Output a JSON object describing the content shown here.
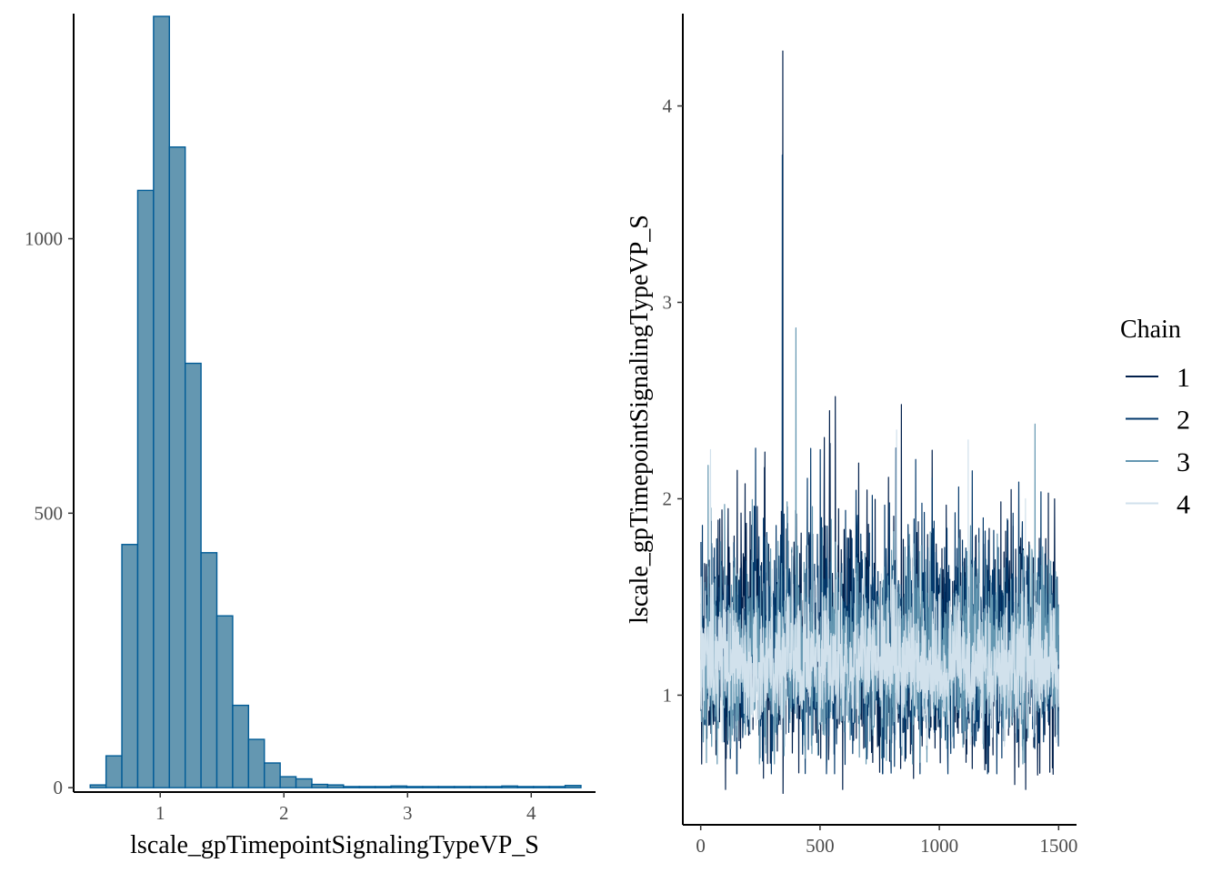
{
  "chart_data": [
    {
      "type": "histogram",
      "xlabel": "lscale_gpTimepointSignalingTypeVP_S",
      "ylabel": "",
      "xlim": [
        0.3,
        4.52
      ],
      "ylim": [
        -8,
        1410
      ],
      "x_ticks": [
        1,
        2,
        3,
        4
      ],
      "x_tick_labels": [
        "1",
        "2",
        "3",
        "4"
      ],
      "y_ticks": [
        0,
        500,
        1000
      ],
      "y_tick_labels": [
        "0",
        "500",
        "1000"
      ],
      "grid": false,
      "fill_color": "#6497b1",
      "edge_color": "#005b96",
      "bin_width": 0.128,
      "bin_left_edges": [
        0.434,
        0.562,
        0.69,
        0.818,
        0.946,
        1.074,
        1.202,
        1.33,
        1.458,
        1.586,
        1.714,
        1.842,
        1.97,
        2.098,
        2.226,
        2.354,
        2.482,
        2.61,
        2.738,
        2.866,
        2.994,
        3.122,
        3.25,
        3.378,
        3.506,
        3.634,
        3.762,
        3.89,
        4.018,
        4.146,
        4.274
      ],
      "counts": [
        5,
        58,
        443,
        1088,
        1405,
        1167,
        773,
        428,
        313,
        150,
        88,
        45,
        20,
        16,
        6,
        5,
        2,
        2,
        2,
        3,
        2,
        2,
        2,
        2,
        2,
        2,
        3,
        2,
        2,
        2,
        4
      ]
    },
    {
      "type": "line",
      "title": "",
      "xlabel": "",
      "ylabel": "lscale_gpTimepointSignalingTypeVP_S",
      "xlim": [
        -75,
        1575
      ],
      "ylim": [
        0.34,
        4.47
      ],
      "x_ticks": [
        0,
        500,
        1000,
        1500
      ],
      "x_tick_labels": [
        "0",
        "500",
        "1000",
        "1500"
      ],
      "y_ticks": [
        1,
        2,
        3,
        4
      ],
      "y_tick_labels": [
        "1",
        "2",
        "3",
        "4"
      ],
      "grid": false,
      "n_iterations": 1500,
      "legend": {
        "title": "Chain",
        "position": "right",
        "entries": [
          "1",
          "2",
          "3",
          "4"
        ]
      },
      "series": [
        {
          "name": "1",
          "color": "#011f4b",
          "width": 1.2,
          "seed": 11,
          "center": 1.18,
          "spread": 0.27,
          "lo": 0.52,
          "hi": 2.5,
          "spikes": [
            [
              343,
              4.28
            ],
            [
              344,
              0.5
            ],
            [
              840,
              2.48
            ],
            [
              563,
              2.52
            ],
            [
              1190,
              0.62
            ]
          ]
        },
        {
          "name": "2",
          "color": "#03396c",
          "width": 1.2,
          "seed": 23,
          "center": 1.16,
          "spread": 0.25,
          "lo": 0.6,
          "hi": 2.4,
          "spikes": [
            [
              341,
              3.75
            ],
            [
              500,
              2.25
            ],
            [
              900,
              2.2
            ]
          ]
        },
        {
          "name": "3",
          "color": "#6497b1",
          "width": 1.2,
          "seed": 37,
          "center": 1.15,
          "spread": 0.22,
          "lo": 0.65,
          "hi": 2.4,
          "spikes": [
            [
              398,
              2.87
            ],
            [
              1400,
              2.38
            ],
            [
              30,
              2.17
            ]
          ]
        },
        {
          "name": "4",
          "color": "#d1e1ec",
          "width": 1.2,
          "seed": 53,
          "center": 1.14,
          "spread": 0.15,
          "lo": 0.74,
          "hi": 2.35,
          "spikes": [
            [
              820,
              2.35
            ],
            [
              40,
              2.25
            ],
            [
              1120,
              2.3
            ],
            [
              1360,
              2.0
            ]
          ]
        }
      ]
    }
  ]
}
